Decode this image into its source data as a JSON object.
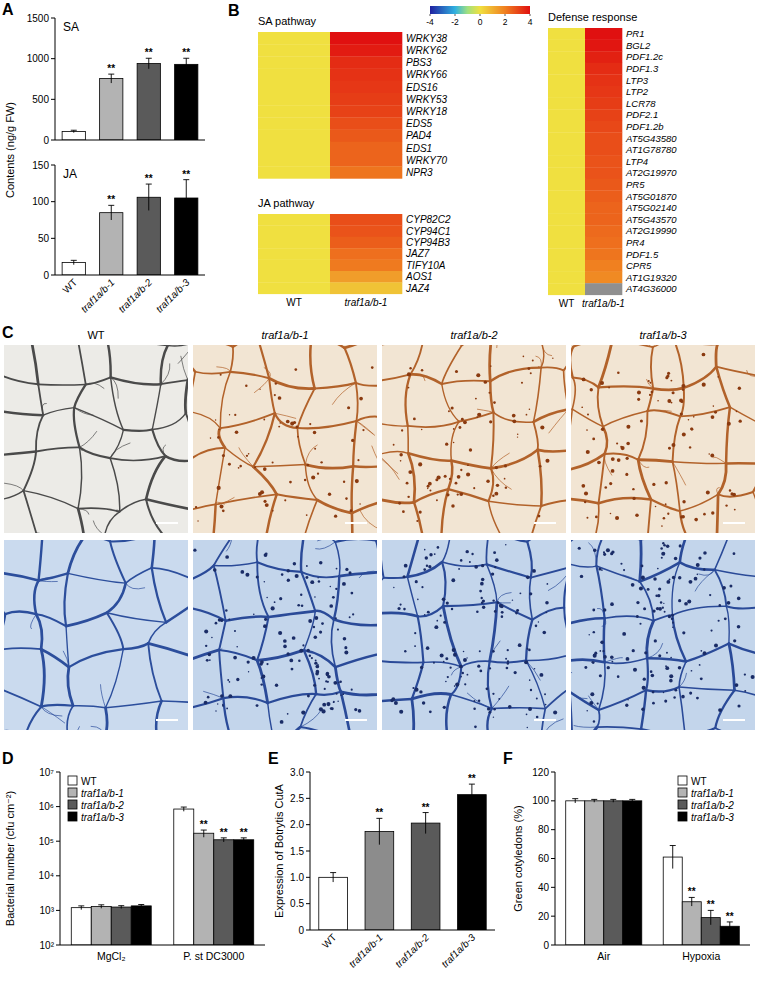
{
  "panel_labels": [
    "A",
    "B",
    "C",
    "D",
    "E",
    "F"
  ],
  "micrographs": {
    "columns": [
      "WT",
      "traf1a/b-1",
      "traf1a/b-2",
      "traf1a/b-3"
    ]
  },
  "chart_data": [
    {
      "type": "bar",
      "title": "SA",
      "ylabel": "Contents (ng/g FW)",
      "categories": [
        null,
        null,
        null,
        null
      ],
      "values": [
        105,
        755,
        940,
        930
      ],
      "errors": [
        15,
        55,
        65,
        75
      ],
      "significance": [
        null,
        "**",
        "**",
        "**"
      ],
      "colors": [
        "#ffffff",
        "#b3b3b3",
        "#5a5a5a",
        "#000000"
      ],
      "ylim": [
        0,
        1500
      ],
      "yticks": [
        0,
        500,
        1000,
        1500
      ]
    },
    {
      "type": "bar",
      "title": "JA",
      "categories": [
        "WT",
        "traf1a/b-1",
        "traf1a/b-2",
        "traf1a/b-3"
      ],
      "values": [
        17,
        85,
        106,
        105
      ],
      "errors": [
        3,
        10,
        18,
        25
      ],
      "significance": [
        null,
        "**",
        "**",
        "**"
      ],
      "colors": [
        "#ffffff",
        "#b3b3b3",
        "#5a5a5a",
        "#000000"
      ],
      "ylim": [
        0,
        150
      ],
      "yticks": [
        0,
        50,
        100,
        150
      ]
    },
    {
      "type": "heatmap",
      "title": "SA pathway",
      "columns": [
        null,
        null
      ],
      "rows": [
        "WRKY38",
        "WRKY62",
        "PBS3",
        "WRKY66",
        "EDS16",
        "WRKY53",
        "WRKY18",
        "EDS5",
        "PAD4",
        "EDS1",
        "WRKY70",
        "NPR3"
      ],
      "cells": [
        [
          0,
          4.0
        ],
        [
          0,
          3.8
        ],
        [
          0,
          3.5
        ],
        [
          0,
          3.4
        ],
        [
          0,
          3.3
        ],
        [
          0,
          3.2
        ],
        [
          0,
          3.1
        ],
        [
          0,
          2.9
        ],
        [
          0,
          2.7
        ],
        [
          0,
          2.5
        ],
        [
          0,
          2.5
        ],
        [
          0,
          2.2
        ]
      ],
      "colorbar_range": [
        -4,
        4
      ],
      "colorbar_ticks": [
        -4,
        -2,
        0,
        2,
        4
      ]
    },
    {
      "type": "heatmap",
      "title": "JA pathway",
      "columns": [
        "WT",
        "traf1a/b-1"
      ],
      "rows": [
        "CYP82C2",
        "CYP94C1",
        "CYP94B3",
        "JAZ7",
        "TIFY10A",
        "AOS1",
        "JAZ4"
      ],
      "cells": [
        [
          0,
          2.9
        ],
        [
          0,
          2.8
        ],
        [
          0,
          2.6
        ],
        [
          0,
          2.3
        ],
        [
          0,
          2.1
        ],
        [
          0,
          1.4
        ],
        [
          0,
          0.6
        ]
      ]
    },
    {
      "type": "heatmap",
      "title": "Defense response",
      "columns": [
        "WT",
        "traf1a/b-1"
      ],
      "rows": [
        "PR1",
        "BGL2",
        "PDF1.2c",
        "PDF1.3",
        "LTP3",
        "LTP2",
        "LCR78",
        "PDF2.1",
        "PDF1.2b",
        "AT5G43580",
        "AT1G78780",
        "LTP4",
        "AT2G19970",
        "PR5",
        "AT5G01870",
        "AT5G02140",
        "AT5G43570",
        "AT2G19990",
        "PR4",
        "PDF1.5",
        "CPR5",
        "AT1G19320",
        "AT4G36000"
      ],
      "cells": [
        [
          0,
          4.0
        ],
        [
          0,
          3.9
        ],
        [
          0,
          3.7
        ],
        [
          0,
          3.5
        ],
        [
          0,
          3.4
        ],
        [
          0,
          3.3
        ],
        [
          0,
          3.2
        ],
        [
          0,
          3.1
        ],
        [
          0,
          3.0
        ],
        [
          0,
          2.9
        ],
        [
          0,
          2.9
        ],
        [
          0,
          2.8
        ],
        [
          0,
          2.8
        ],
        [
          0,
          2.7
        ],
        [
          0,
          2.6
        ],
        [
          0,
          2.5
        ],
        [
          0,
          2.5
        ],
        [
          0,
          2.4
        ],
        [
          0,
          2.3
        ],
        [
          0,
          2.2
        ],
        [
          0,
          2.0
        ],
        [
          0,
          1.8
        ],
        [
          0,
          null
        ]
      ]
    },
    {
      "type": "bar",
      "ylabel": "Bacterial number (cfu cm⁻²)",
      "categories": [
        "MgCl₂",
        "P. st DC3000"
      ],
      "series": [
        {
          "name": "WT",
          "color": "#ffffff",
          "values": [
            1200,
            850000
          ],
          "errors": [
            150,
            120000
          ],
          "significance": [
            null,
            null
          ]
        },
        {
          "name": "traf1a/b-1",
          "color": "#b3b3b3",
          "values": [
            1300,
            170000
          ],
          "errors": [
            150,
            40000
          ],
          "significance": [
            null,
            "**"
          ]
        },
        {
          "name": "traf1a/b-2",
          "color": "#5a5a5a",
          "values": [
            1250,
            110000
          ],
          "errors": [
            120,
            15000
          ],
          "significance": [
            null,
            "**"
          ]
        },
        {
          "name": "traf1a/b-3",
          "color": "#000000",
          "values": [
            1350,
            110000
          ],
          "errors": [
            130,
            15000
          ],
          "significance": [
            null,
            "**"
          ]
        }
      ],
      "log": "y",
      "ylim": [
        100,
        10000000
      ],
      "yticks": [
        {
          "value": 100,
          "label": "10²"
        },
        {
          "value": 1000,
          "label": "10³"
        },
        {
          "value": 10000,
          "label": "10⁴"
        },
        {
          "value": 100000,
          "label": "10⁵"
        },
        {
          "value": 1000000,
          "label": "10⁶"
        },
        {
          "value": 10000000,
          "label": "10⁷"
        }
      ],
      "legend": "top-left"
    },
    {
      "type": "bar",
      "ylabel": "Expression of Botrytis CutA",
      "categories": [
        "WT",
        "traf1a/b-1",
        "traf1a/b-2",
        "traf1a/b-3"
      ],
      "values": [
        1.0,
        1.87,
        2.03,
        2.57
      ],
      "errors": [
        0.09,
        0.25,
        0.2,
        0.2
      ],
      "significance": [
        null,
        "**",
        "**",
        "**"
      ],
      "colors": [
        "#ffffff",
        "#8c8c8c",
        "#5a5a5a",
        "#000000"
      ],
      "ylim": [
        0,
        3
      ],
      "yticks": [
        0,
        0.5,
        {
          "value": 1,
          "label": "1.0"
        },
        1.5,
        {
          "value": 2,
          "label": "2.0"
        },
        2.5,
        {
          "value": 3,
          "label": "3.0"
        }
      ]
    },
    {
      "type": "bar",
      "ylabel": "Green cotyledons (%)",
      "categories": [
        "Air",
        "Hypoxia"
      ],
      "series": [
        {
          "name": "WT",
          "color": "#ffffff",
          "values": [
            100,
            61
          ],
          "errors": [
            1.5,
            8
          ],
          "significance": [
            null,
            null
          ]
        },
        {
          "name": "traf1a/b-1",
          "color": "#b3b3b3",
          "values": [
            100,
            30
          ],
          "errors": [
            1,
            3
          ],
          "significance": [
            null,
            "**"
          ]
        },
        {
          "name": "traf1a/b-2",
          "color": "#5a5a5a",
          "values": [
            100,
            19
          ],
          "errors": [
            1,
            5
          ],
          "significance": [
            null,
            "**"
          ]
        },
        {
          "name": "traf1a/b-3",
          "color": "#000000",
          "values": [
            100,
            13
          ],
          "errors": [
            1,
            3
          ],
          "significance": [
            null,
            "**"
          ]
        }
      ],
      "ylim": [
        0,
        120
      ],
      "yticks": [
        0,
        20,
        40,
        60,
        80,
        100,
        120
      ],
      "legend": "top-right"
    }
  ]
}
